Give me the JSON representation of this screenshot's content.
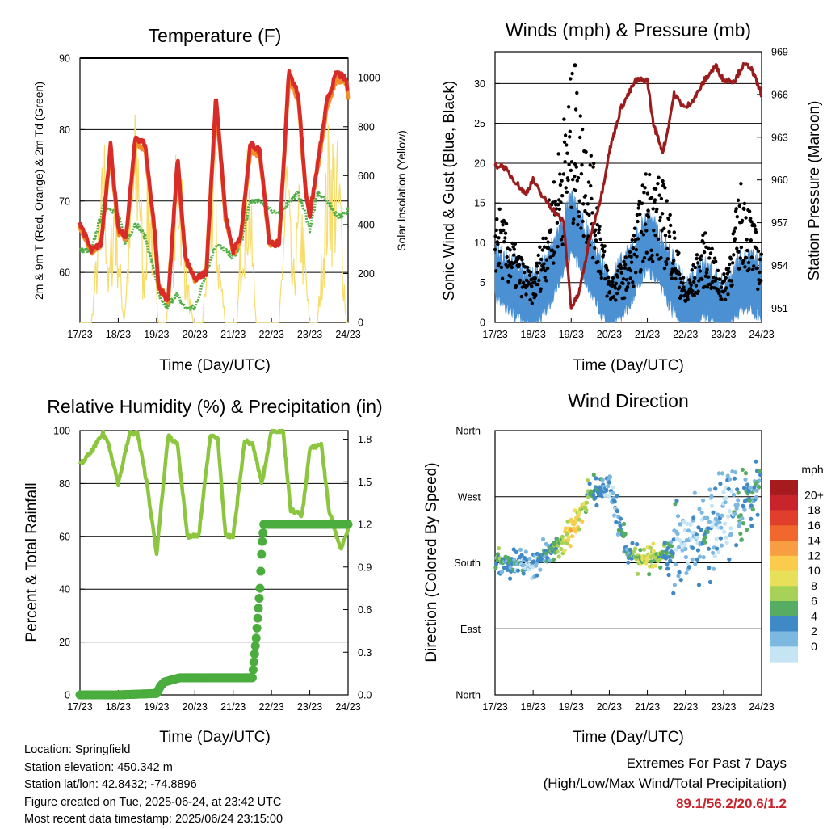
{
  "time_axis": {
    "label": "Time (Day/UTC)",
    "ticks": [
      "17/23",
      "18/23",
      "19/23",
      "20/23",
      "21/23",
      "22/23",
      "23/23",
      "24/23"
    ]
  },
  "chart_data": [
    {
      "type": "line",
      "title": "Temperature (F)",
      "ylabel_left": "2m & 9m T (Red, Orange) & 2m Td (Green)",
      "ylabel_right": "Solar Insolation (Yellow)",
      "xlabel": "Time (Day/UTC)",
      "x_ticks": [
        "17/23",
        "18/23",
        "19/23",
        "20/23",
        "21/23",
        "22/23",
        "23/23",
        "24/23"
      ],
      "ylim_left": [
        53,
        90
      ],
      "yticks_left": [
        60,
        70,
        80,
        90
      ],
      "ylim_right": [
        0,
        1080
      ],
      "yticks_right": [
        0,
        200,
        400,
        600,
        800,
        1000
      ],
      "grid": true,
      "series": [
        {
          "color": "#d92b27",
          "axis": "left",
          "t": [
            0,
            0.3,
            0.55,
            0.8,
            1.0,
            1.2,
            1.45,
            1.7,
            1.95,
            2.05,
            2.3,
            2.55,
            2.75,
            3.0,
            3.3,
            3.55,
            3.8,
            4.0,
            4.2,
            4.45,
            4.7,
            4.95,
            5.2,
            5.45,
            5.7,
            5.9,
            6.0,
            6.2,
            6.45,
            6.7,
            6.95,
            7.0
          ],
          "y": [
            67,
            63,
            64,
            78,
            66,
            65,
            79,
            78,
            66,
            58,
            56,
            76,
            62,
            59,
            60,
            85,
            68,
            63,
            65,
            78,
            77,
            64,
            64,
            88,
            85,
            71,
            68,
            75,
            84,
            88,
            87,
            85
          ]
        },
        {
          "color": "#f18d2b",
          "axis": "left",
          "t": [
            0,
            0.3,
            0.55,
            0.8,
            1.0,
            1.2,
            1.45,
            1.7,
            1.95,
            2.05,
            2.3,
            2.55,
            2.75,
            3.0,
            3.3,
            3.55,
            3.8,
            4.0,
            4.2,
            4.45,
            4.7,
            4.95,
            5.2,
            5.45,
            5.7,
            5.9,
            6.0,
            6.2,
            6.45,
            6.7,
            6.95,
            7.0
          ],
          "y": [
            66.6,
            62.8,
            63.7,
            77.2,
            65.7,
            64.8,
            78.2,
            77.3,
            65.8,
            58.1,
            56.2,
            75.3,
            61.8,
            59.1,
            60.2,
            84.1,
            67.6,
            62.8,
            64.8,
            77.3,
            76.4,
            63.9,
            64.2,
            87.1,
            84.3,
            70.8,
            68.3,
            74.5,
            83.2,
            87.2,
            86.4,
            84.6
          ]
        },
        {
          "color": "#52ae47",
          "axis": "left",
          "t": [
            0,
            0.3,
            0.6,
            0.8,
            1.0,
            1.2,
            1.45,
            1.7,
            1.95,
            2.1,
            2.3,
            2.5,
            2.75,
            3.0,
            3.3,
            3.55,
            3.8,
            4.0,
            4.2,
            4.45,
            4.7,
            4.95,
            5.2,
            5.45,
            5.7,
            5.9,
            6.0,
            6.2,
            6.45,
            6.7,
            6.95,
            7.0
          ],
          "y": [
            63,
            63,
            69,
            69,
            68,
            64,
            67,
            65,
            60,
            56,
            55,
            57,
            55,
            55,
            60,
            64,
            63,
            62,
            64,
            70,
            70,
            69,
            68,
            70,
            71,
            68,
            66,
            71,
            70,
            68,
            68,
            69
          ]
        },
        {
          "color": "#f7dc6b",
          "axis": "right",
          "t": [
            0.3,
            0.65,
            0.75,
            0.9,
            1.15,
            1.4,
            1.55,
            1.65,
            1.8,
            2.05,
            2.25,
            2.6,
            2.75,
            2.95,
            3.2,
            3.5,
            3.6,
            3.8,
            4.1,
            4.25,
            4.4,
            4.6,
            4.9,
            5.2,
            5.4,
            5.55,
            5.75,
            6.0,
            6.2,
            6.5,
            6.7,
            6.8,
            6.95
          ],
          "y": [
            0,
            850,
            200,
            700,
            0,
            850,
            1000,
            200,
            800,
            0,
            0,
            980,
            300,
            0,
            0,
            1000,
            400,
            0,
            0,
            650,
            800,
            0,
            0,
            0,
            850,
            200,
            650,
            0,
            0,
            900,
            800,
            650,
            0
          ]
        }
      ]
    },
    {
      "type": "scatter",
      "title": "Winds (mph) & Pressure (mb)",
      "ylabel_left": "Sonic Wind & Gust (Blue, Black)",
      "ylabel_right": "Station Pressure (Maroon)",
      "xlabel": "Time (Day/UTC)",
      "x_ticks": [
        "17/23",
        "18/23",
        "19/23",
        "20/23",
        "21/23",
        "22/23",
        "23/23",
        "24/23"
      ],
      "ylim_left": [
        0,
        34
      ],
      "yticks_left": [
        0,
        5,
        10,
        15,
        20,
        25,
        30
      ],
      "ylim_right": [
        950,
        969
      ],
      "yticks_right": [
        951,
        954,
        957,
        960,
        963,
        966,
        969
      ],
      "grid": true,
      "series": [
        {
          "name": "gust",
          "color": "#000000",
          "t": [
            0,
            0.5,
            1.0,
            1.5,
            2.0,
            2.5,
            3.0,
            3.5,
            4.0,
            4.5,
            5.0,
            5.5,
            6.0,
            6.5,
            7.0
          ],
          "y": [
            11,
            7,
            4,
            12,
            22,
            16,
            4,
            6,
            14,
            12,
            3,
            8,
            4,
            13,
            6
          ]
        },
        {
          "name": "wind",
          "color": "#4a90d2",
          "t": [
            0,
            0.5,
            1.0,
            1.5,
            2.0,
            2.5,
            3.0,
            3.5,
            4.0,
            4.5,
            5.0,
            5.5,
            6.0,
            6.5,
            7.0
          ],
          "y": [
            6,
            4,
            2,
            6,
            12,
            7,
            2,
            5,
            10,
            6,
            1,
            4,
            1,
            5,
            4
          ]
        },
        {
          "name": "pressure",
          "color": "#9b1c1c",
          "t": [
            0,
            0.2,
            0.5,
            0.8,
            1.0,
            1.2,
            1.5,
            1.8,
            2.0,
            2.2,
            2.5,
            2.8,
            3.0,
            3.3,
            3.7,
            4.0,
            4.15,
            4.4,
            4.5,
            4.7,
            5.0,
            5.3,
            5.5,
            5.8,
            6.0,
            6.3,
            6.5,
            6.7,
            6.85,
            7.0
          ],
          "y": [
            961,
            961,
            960,
            959,
            960,
            959,
            958,
            957,
            951,
            952,
            956,
            959,
            962,
            965,
            967,
            967,
            964,
            962,
            963,
            966,
            965,
            966,
            967,
            968,
            967,
            967,
            968,
            968,
            967,
            966
          ]
        }
      ]
    },
    {
      "type": "line",
      "title": "Relative Humidity (%) & Precipitation (in)",
      "ylabel_left": "Percent & Total Rainfall",
      "xlabel": "Time (Day/UTC)",
      "x_ticks": [
        "17/23",
        "18/23",
        "19/23",
        "20/23",
        "21/23",
        "22/23",
        "23/23",
        "24/23"
      ],
      "ylim_left": [
        0,
        100
      ],
      "yticks_left": [
        0,
        20,
        40,
        60,
        80,
        100
      ],
      "ylim_right": [
        0,
        1.86
      ],
      "yticks_right": [
        0.0,
        0.3,
        0.6,
        0.9,
        1.2,
        1.5,
        1.8
      ],
      "grid": true,
      "series": [
        {
          "name": "rh",
          "color": "#8cc63f",
          "t": [
            0,
            0.3,
            0.6,
            0.75,
            1.0,
            1.3,
            1.5,
            1.75,
            2.0,
            2.3,
            2.55,
            2.8,
            3.1,
            3.4,
            3.6,
            3.8,
            4.0,
            4.3,
            4.5,
            4.75,
            5.0,
            5.3,
            5.5,
            5.8,
            6.0,
            6.3,
            6.5,
            6.8,
            7.0
          ],
          "y": [
            87,
            92,
            99,
            95,
            80,
            99,
            99,
            80,
            53,
            98,
            95,
            60,
            60,
            98,
            97,
            60,
            60,
            96,
            95,
            80,
            100,
            100,
            70,
            68,
            93,
            95,
            70,
            55,
            63
          ]
        },
        {
          "name": "precip",
          "color": "#4aad3e",
          "t": [
            0,
            1.0,
            2.0,
            2.1,
            2.2,
            2.6,
            3.0,
            3.6,
            4.5,
            4.6,
            4.7,
            4.75,
            4.8,
            5.0,
            6.0,
            7.0
          ],
          "y": [
            0,
            0,
            0.01,
            0.06,
            0.09,
            0.12,
            0.12,
            0.12,
            0.12,
            0.4,
            0.75,
            1.05,
            1.2,
            1.2,
            1.2,
            1.2
          ]
        }
      ]
    },
    {
      "type": "scatter",
      "title": "Wind Direction",
      "ylabel_left": "Direction (Colored By Speed)",
      "xlabel": "Time (Day/UTC)",
      "x_ticks": [
        "17/23",
        "18/23",
        "19/23",
        "20/23",
        "21/23",
        "22/23",
        "23/23",
        "24/23"
      ],
      "yticks_labels": [
        "North",
        "East",
        "South",
        "West",
        "North"
      ],
      "ylim_left": [
        0,
        360
      ],
      "grid": true,
      "colorbar": {
        "title": "mph",
        "labels": [
          "20+",
          "18",
          "16",
          "14",
          "12",
          "10",
          "8",
          "6",
          "4",
          "2",
          "0"
        ],
        "colors": [
          "#a51b1e",
          "#c8242b",
          "#e0402b",
          "#f0682e",
          "#f79d42",
          "#fbcb4c",
          "#e8e05a",
          "#a7d257",
          "#55ac62",
          "#3f89c6",
          "#7db8e0",
          "#c5e4f4"
        ]
      },
      "series_daily_center": {
        "t": [
          0,
          0.5,
          1.0,
          1.5,
          2.0,
          2.5,
          3.0,
          3.5,
          4.0,
          4.5,
          5.0,
          5.5,
          6.0,
          6.5,
          7.0
        ],
        "dir": [
          180,
          182,
          178,
          200,
          225,
          275,
          285,
          190,
          185,
          195,
          210,
          220,
          245,
          250,
          300
        ]
      }
    }
  ],
  "footer": {
    "location": "Location: Springfield",
    "elevation": "Station elevation: 450.342 m",
    "latlon": "Station lat/lon: 42.8432; -74.8896",
    "created": "Figure created on Tue, 2025-06-24, at 23:42 UTC",
    "latest": "Most recent data timestamp: 2025/06/24 23:15:00"
  },
  "extremes": {
    "title": "Extremes For Past 7 Days",
    "subtitle": "(High/Low/Max Wind/Total Precipitation)",
    "values": "89.1/56.2/20.6/1.2"
  }
}
